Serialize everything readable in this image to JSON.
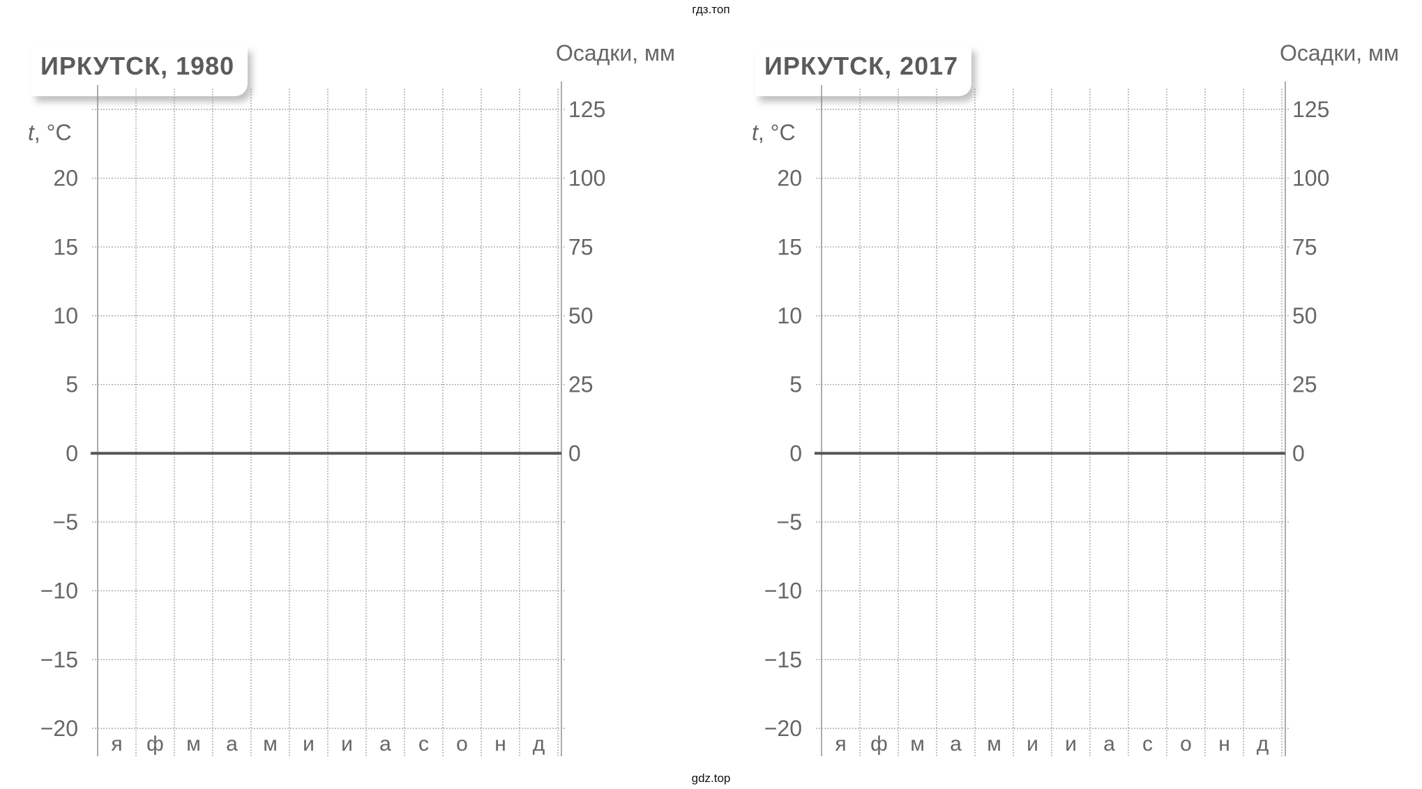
{
  "watermark_top": "гдз.топ",
  "watermark_bottom": "gdz.top",
  "chart_data": [
    {
      "type": "line",
      "title": "ИРКУТСК, 1980",
      "ylabel_left_var": "t",
      "ylabel_left_unit": ", °C",
      "ylabel_right": "Осадки, мм",
      "categories": [
        "я",
        "ф",
        "м",
        "а",
        "м",
        "и",
        "и",
        "а",
        "с",
        "о",
        "н",
        "д"
      ],
      "temp_ticks": [
        "20",
        "15",
        "10",
        "5",
        "0",
        "−5",
        "−10",
        "−15",
        "−20"
      ],
      "precip_ticks": [
        "125",
        "100",
        "75",
        "50",
        "25",
        "0"
      ],
      "ylim_temp": [
        -20,
        25
      ],
      "ylim_precip": [
        0,
        125
      ],
      "grid": true,
      "series": []
    },
    {
      "type": "line",
      "title": "ИРКУТСК, 2017",
      "ylabel_left_var": "t",
      "ylabel_left_unit": ", °C",
      "ylabel_right": "Осадки, мм",
      "categories": [
        "я",
        "ф",
        "м",
        "а",
        "м",
        "и",
        "и",
        "а",
        "с",
        "о",
        "н",
        "д"
      ],
      "temp_ticks": [
        "20",
        "15",
        "10",
        "5",
        "0",
        "−5",
        "−10",
        "−15",
        "−20"
      ],
      "precip_ticks": [
        "125",
        "100",
        "75",
        "50",
        "25",
        "0"
      ],
      "ylim_temp": [
        -20,
        25
      ],
      "ylim_precip": [
        0,
        125
      ],
      "grid": true,
      "series": []
    }
  ]
}
